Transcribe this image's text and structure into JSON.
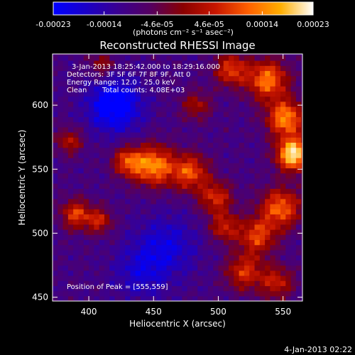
{
  "chart_data": {
    "type": "heatmap",
    "title": "Reconstructed RHESSI Image",
    "colorbar": {
      "ticks": [
        "-0.00023",
        "-0.00014",
        "-4.6e-05",
        "4.6e-05",
        "0.00014",
        "0.00023"
      ],
      "tick_values": [
        -0.00023,
        -0.00014,
        -4.6e-05,
        4.6e-05,
        0.00014,
        0.00023
      ],
      "range": [
        -0.00023,
        0.00023
      ],
      "unit_label": "(photons cm⁻² s⁻¹ asec⁻²)",
      "colormap": [
        "#0000ff",
        "#1a00c8",
        "#3a0090",
        "#550060",
        "#8a0000",
        "#c81600",
        "#ff6000",
        "#ffae00",
        "#ffffff"
      ]
    },
    "xlabel": "Heliocentric X (arcsec)",
    "ylabel": "Heliocentric Y (arcsec)",
    "xlim": [
      372,
      565
    ],
    "ylim": [
      447,
      640
    ],
    "xticks": [
      400,
      450,
      500,
      550
    ],
    "yticks": [
      450,
      500,
      550,
      600
    ],
    "annotations": {
      "time_range": "3-Jan-2013 18:25:42.000 to 18:29:16.000",
      "detectors": "Detectors: 3F 5F 6F 7F 8F 9F, Att 0",
      "energy": "Energy Range: 12.0 - 25.0 keV",
      "method": "Clean",
      "counts": "Total counts: 4.08E+03",
      "peak": "Position of Peak = [555,559]"
    },
    "peak": [
      555,
      559
    ],
    "sources": [
      {
        "x": 558,
        "y": 562,
        "amp": 1.0,
        "sigma": 9
      },
      {
        "x": 552,
        "y": 590,
        "amp": 0.75,
        "sigma": 10
      },
      {
        "x": 538,
        "y": 620,
        "amp": 0.7,
        "sigma": 11
      },
      {
        "x": 510,
        "y": 628,
        "amp": 0.55,
        "sigma": 9
      },
      {
        "x": 548,
        "y": 520,
        "amp": 0.65,
        "sigma": 11
      },
      {
        "x": 530,
        "y": 498,
        "amp": 0.55,
        "sigma": 10
      },
      {
        "x": 520,
        "y": 470,
        "amp": 0.5,
        "sigma": 10
      },
      {
        "x": 545,
        "y": 462,
        "amp": 0.45,
        "sigma": 9
      },
      {
        "x": 450,
        "y": 553,
        "amp": 0.75,
        "sigma": 11
      },
      {
        "x": 478,
        "y": 548,
        "amp": 0.6,
        "sigma": 10
      },
      {
        "x": 430,
        "y": 556,
        "amp": 0.55,
        "sigma": 8
      },
      {
        "x": 498,
        "y": 528,
        "amp": 0.5,
        "sigma": 9
      },
      {
        "x": 505,
        "y": 505,
        "amp": 0.45,
        "sigma": 8
      },
      {
        "x": 390,
        "y": 515,
        "amp": 0.55,
        "sigma": 8
      },
      {
        "x": 408,
        "y": 510,
        "amp": 0.45,
        "sigma": 7
      },
      {
        "x": 385,
        "y": 572,
        "amp": 0.4,
        "sigma": 7
      },
      {
        "x": 410,
        "y": 632,
        "amp": 0.3,
        "sigma": 7
      },
      {
        "x": 483,
        "y": 600,
        "amp": 0.35,
        "sigma": 8
      },
      {
        "x": 420,
        "y": 600,
        "amp": -0.55,
        "sigma": 14
      },
      {
        "x": 460,
        "y": 490,
        "amp": -0.3,
        "sigma": 16
      },
      {
        "x": 440,
        "y": 470,
        "amp": -0.25,
        "sigma": 14
      }
    ]
  },
  "footer": {
    "date": "4-Jan-2013 02:22"
  }
}
